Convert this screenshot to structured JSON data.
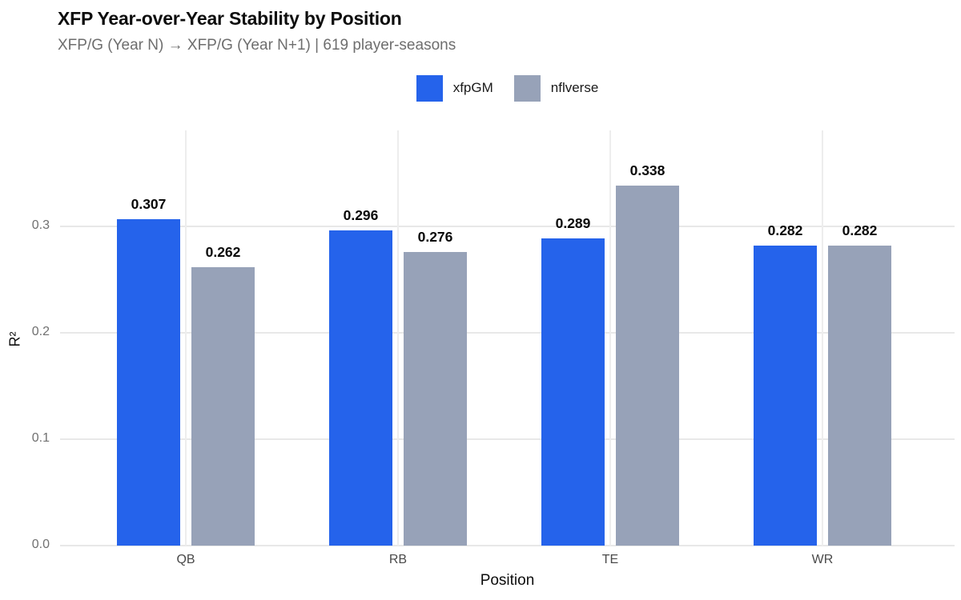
{
  "header": {
    "title": "XFP Year-over-Year Stability by Position",
    "subtitle": "XFP/G (Year N) → XFP/G (Year N+1) | 619 player-seasons"
  },
  "legend": {
    "items": [
      {
        "label": "xfpGM",
        "color": "#2563EB"
      },
      {
        "label": "nflverse",
        "color": "#97A2B8"
      }
    ],
    "position": "top-center"
  },
  "chart_data": {
    "type": "bar",
    "title": "XFP Year-over-Year Stability by Position",
    "subtitle": "XFP/G (Year N) → XFP/G (Year N+1) | 619 player-seasons",
    "categories": [
      "QB",
      "RB",
      "TE",
      "WR"
    ],
    "series": [
      {
        "name": "xfpGM",
        "color": "#2563EB",
        "values": [
          0.307,
          0.296,
          0.289,
          0.282
        ],
        "labels": [
          "0.307",
          "0.296",
          "0.289",
          "0.282"
        ]
      },
      {
        "name": "nflverse",
        "color": "#97A2B8",
        "values": [
          0.262,
          0.276,
          0.338,
          0.282
        ],
        "labels": [
          "0.262",
          "0.276",
          "0.338",
          "0.282"
        ]
      }
    ],
    "xlabel": "Position",
    "ylabel": "R²",
    "ylim": [
      0,
      0.39
    ],
    "yticks": [
      0,
      0.1,
      0.2,
      0.3
    ],
    "grid": true,
    "grid_color": "#e8e8e8",
    "background": "#ffffff",
    "legend_position": "top",
    "value_labels": true
  }
}
